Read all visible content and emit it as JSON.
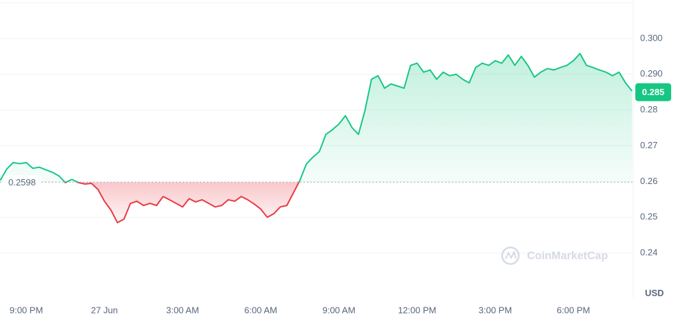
{
  "chart_data": {
    "type": "line",
    "categories": [
      null,
      null,
      null,
      null,
      "9:00 PM",
      null,
      null,
      null,
      null,
      null,
      null,
      null,
      null,
      null,
      null,
      null,
      "27 Jun",
      null,
      null,
      null,
      null,
      null,
      null,
      null,
      null,
      null,
      null,
      null,
      "3:00 AM",
      null,
      null,
      null,
      null,
      null,
      null,
      null,
      null,
      null,
      null,
      null,
      "6:00 AM",
      null,
      null,
      null,
      null,
      null,
      null,
      null,
      null,
      null,
      null,
      null,
      "9:00 AM",
      null,
      null,
      null,
      null,
      null,
      null,
      null,
      null,
      null,
      null,
      null,
      "12:00 PM",
      null,
      null,
      null,
      null,
      null,
      null,
      null,
      null,
      null,
      null,
      null,
      "3:00 PM",
      null,
      null,
      null,
      null,
      null,
      null,
      null,
      null,
      null,
      null,
      null,
      "6:00 PM",
      null,
      null,
      null,
      null,
      null,
      null,
      null,
      null,
      null
    ],
    "values": [
      0.2603,
      0.2635,
      0.2653,
      0.265,
      0.2653,
      0.2637,
      0.264,
      0.2633,
      0.2626,
      0.2616,
      0.2597,
      0.2606,
      0.2597,
      0.2593,
      0.2595,
      0.2578,
      0.2545,
      0.252,
      0.2485,
      0.2495,
      0.2539,
      0.2545,
      0.2533,
      0.2539,
      0.2533,
      0.2558,
      0.2549,
      0.2539,
      0.2529,
      0.2552,
      0.2543,
      0.2549,
      0.2539,
      0.2529,
      0.2533,
      0.2549,
      0.2545,
      0.2558,
      0.2549,
      0.2537,
      0.2523,
      0.25,
      0.251,
      0.2529,
      0.2533,
      0.2568,
      0.2603,
      0.2649,
      0.2668,
      0.2684,
      0.2732,
      0.2745,
      0.2761,
      0.2784,
      0.2751,
      0.2732,
      0.2799,
      0.2886,
      0.2896,
      0.2861,
      0.2873,
      0.2867,
      0.2861,
      0.2925,
      0.2931,
      0.2906,
      0.2912,
      0.2886,
      0.2906,
      0.2896,
      0.29,
      0.2886,
      0.2876,
      0.2919,
      0.2931,
      0.2925,
      0.2938,
      0.2931,
      0.2954,
      0.2925,
      0.295,
      0.2925,
      0.2892,
      0.2906,
      0.2916,
      0.2912,
      0.2919,
      0.2925,
      0.2938,
      0.2958,
      0.2925,
      0.2919,
      0.2912,
      0.2906,
      0.2896,
      0.2906,
      0.2876,
      0.2853
    ],
    "baseline": 0.2598,
    "current_price": 0.285,
    "color_up": "#16c784",
    "color_down": "#ea3943",
    "ylim": [
      0.23,
      0.31
    ],
    "yticks": [
      0.24,
      0.25,
      0.26,
      0.27,
      0.28,
      {
        "value": 0.29,
        "label": "0.290"
      },
      {
        "value": 0.3,
        "label": "0.300"
      }
    ],
    "y_unit": "USD",
    "watermark": "CoinMarketCap",
    "grid": true
  }
}
